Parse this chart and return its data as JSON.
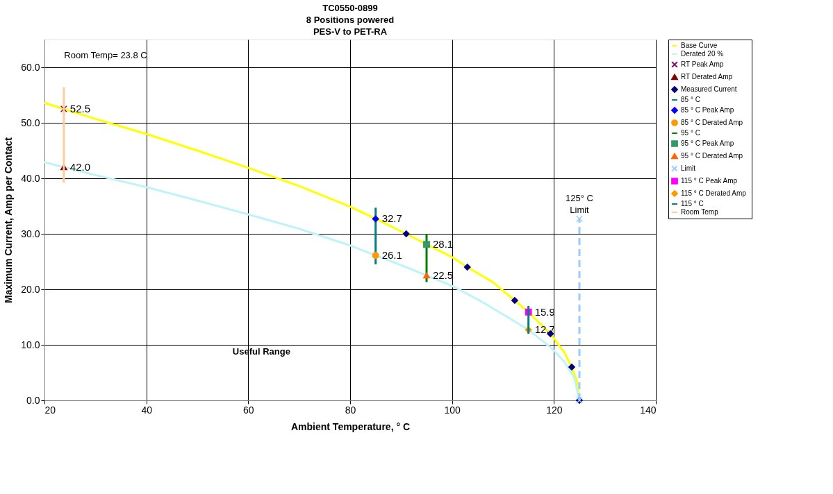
{
  "chart_data": {
    "type": "line",
    "title": "TC0550-0899\n8 Positions powered\nPES-V to PET-RA",
    "xlabel": "Ambient Temperature,  ° C",
    "ylabel": "Maximum Current, Amp per Contact",
    "xlim": [
      20,
      140
    ],
    "xticks": [
      20,
      40,
      60,
      80,
      100,
      120,
      140
    ],
    "ylim": [
      0,
      65
    ],
    "yticks": [
      {
        "value": 0,
        "label": "0.0"
      },
      {
        "value": 10,
        "label": "10.0"
      },
      {
        "value": 20,
        "label": "20.0"
      },
      {
        "value": 30,
        "label": "30.0"
      },
      {
        "value": 40,
        "label": "40.0"
      },
      {
        "value": 50,
        "label": "50.0"
      },
      {
        "value": 60,
        "label": "60.0"
      }
    ],
    "grid": true,
    "legend": "top right",
    "series": [
      {
        "name": "Base Curve",
        "color": "#ffff00",
        "marker": "none",
        "line_style": "solid",
        "x": [
          20,
          23.8,
          30,
          40,
          50,
          60,
          70,
          80,
          85,
          91,
          95,
          100,
          103,
          108,
          112.3,
          115,
          119.3,
          122,
          123.5,
          124.5,
          125
        ],
        "values": [
          53.6,
          52.5,
          50.7,
          48.0,
          45.0,
          41.9,
          38.6,
          34.9,
          32.7,
          30.0,
          28.1,
          25.8,
          24.0,
          21.3,
          18.0,
          15.9,
          12.0,
          8.7,
          6.0,
          3.5,
          0
        ]
      },
      {
        "name": "Derated 20 %",
        "color": "#bff3f8",
        "marker": "none",
        "line_style": "solid",
        "x": [
          20,
          23.8,
          30,
          40,
          50,
          60,
          70,
          80,
          85,
          91,
          95,
          100,
          105,
          110,
          115,
          119.3,
          122,
          124,
          125
        ],
        "values": [
          42.9,
          42.0,
          40.6,
          38.4,
          36.0,
          33.5,
          30.9,
          27.9,
          26.1,
          24.0,
          22.5,
          20.6,
          18.2,
          15.5,
          12.7,
          9.6,
          7.0,
          4.0,
          0
        ]
      },
      {
        "name": "RT Peak Amp",
        "type": "scatter",
        "color": "#800080",
        "marker": "cross",
        "x": [
          23.8
        ],
        "values": [
          52.5
        ],
        "value_labels": [
          "52.5"
        ]
      },
      {
        "name": "RT Derated Amp",
        "type": "scatter",
        "color": "#800000",
        "marker": "triangle",
        "x": [
          23.8
        ],
        "values": [
          42.0
        ],
        "value_labels": [
          "42.0"
        ]
      },
      {
        "name": "Measured Current",
        "type": "scatter",
        "color": "#000080",
        "marker": "diamond",
        "x": [
          91,
          103,
          112.3,
          119.3,
          123.5,
          125
        ],
        "values": [
          30,
          24,
          18,
          12,
          6,
          0
        ]
      },
      {
        "name": "85 ° C",
        "type": "line",
        "color": "#008080",
        "marker": "none",
        "line_style": "solid",
        "x": [
          85,
          85
        ],
        "values": [
          24.5,
          34.7
        ]
      },
      {
        "name": "85  ° C Peak Amp",
        "type": "scatter",
        "color": "#0000ff",
        "marker": "diamond",
        "x": [
          85
        ],
        "values": [
          32.7
        ],
        "value_labels": [
          "32.7"
        ]
      },
      {
        "name": "85  ° C Derated Amp",
        "type": "scatter",
        "color": "#ff9900",
        "marker": "circle",
        "x": [
          85
        ],
        "values": [
          26.1
        ],
        "value_labels": [
          "26.1"
        ]
      },
      {
        "name": "95  ° C",
        "type": "line",
        "color": "#008000",
        "marker": "none",
        "line_style": "solid",
        "x": [
          95,
          95
        ],
        "values": [
          21.3,
          30.0
        ]
      },
      {
        "name": "95  ° C Peak Amp",
        "type": "scatter",
        "color": "#339966",
        "marker": "square",
        "x": [
          95
        ],
        "values": [
          28.1
        ],
        "value_labels": [
          "28.1"
        ]
      },
      {
        "name": "95  ° C Derated Amp",
        "type": "scatter",
        "color": "#ff6600",
        "marker": "triangle",
        "x": [
          95
        ],
        "values": [
          22.5
        ],
        "value_labels": [
          "22.5"
        ]
      },
      {
        "name": "Limit",
        "type": "line",
        "color": "#99ccff",
        "marker": "cross",
        "line_style": "dashed",
        "x": [
          125,
          125
        ],
        "values": [
          0,
          32.7
        ]
      },
      {
        "name": "115  ° C Peak Amp",
        "type": "scatter",
        "color": "#ff00ff",
        "marker": "square",
        "x": [
          115
        ],
        "values": [
          15.9
        ],
        "value_labels": [
          "15.9"
        ]
      },
      {
        "name": "115  ° C Derated Amp",
        "type": "scatter",
        "color": "#ff9900",
        "marker": "diamond",
        "x": [
          115
        ],
        "values": [
          12.7
        ],
        "value_labels": [
          "12.7"
        ]
      },
      {
        "name": "115  ° C",
        "type": "line",
        "color": "#008080",
        "marker": "none",
        "line_style": "solid",
        "x": [
          115,
          115
        ],
        "values": [
          12.0,
          17.0
        ]
      },
      {
        "name": "Room Temp",
        "type": "line",
        "color": "#ffcc99",
        "marker": "none",
        "line_style": "solid",
        "x": [
          23.8,
          23.8
        ],
        "values": [
          39.2,
          56.4
        ]
      }
    ],
    "annotations": [
      "Room Temp= 23.8 C",
      "125° C\nLimit",
      "Useful Range"
    ]
  }
}
